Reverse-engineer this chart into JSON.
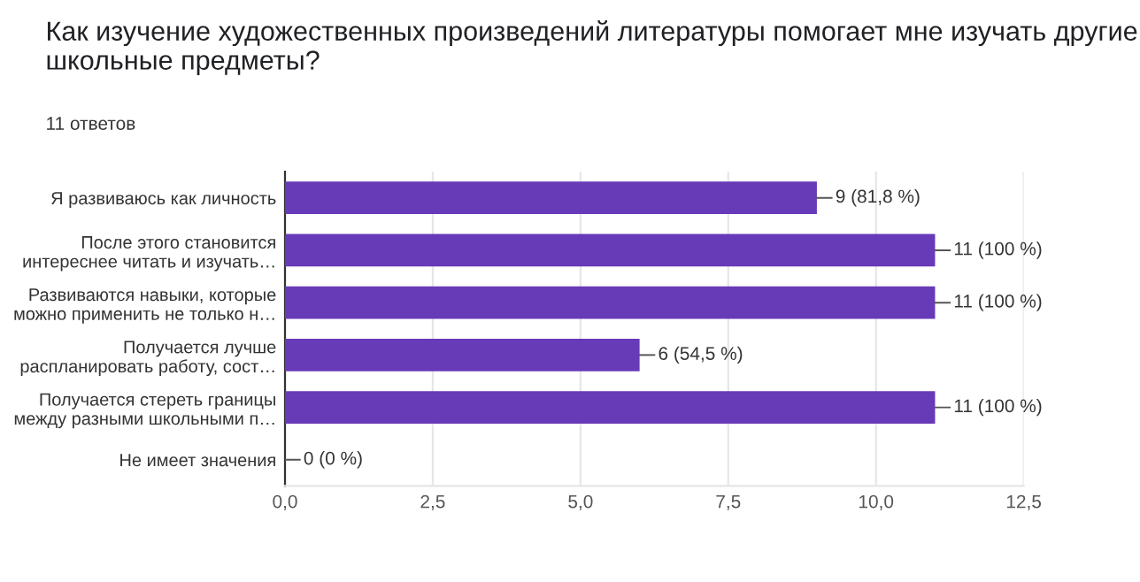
{
  "chart_data": {
    "type": "bar",
    "orientation": "horizontal",
    "title": "Как изучение художественных произведений литературы помогает мне изучать другие школьные предметы?",
    "subtitle": "11 ответов",
    "categories": [
      "Я развиваюсь как личность",
      "После этого становится\nинтереснее читать и изучать…",
      "Развиваются навыки, которые\nможно применить не только н…",
      "Получается лучше\nраспланировать работу, сост…",
      "Получается стереть границы\nмежду разными школьными п…",
      "Не имеет значения"
    ],
    "values": [
      9,
      11,
      11,
      6,
      11,
      0
    ],
    "value_labels": [
      "9 (81,8 %)",
      "11 (100 %)",
      "11 (100 %)",
      "6 (54,5 %)",
      "11 (100 %)",
      "0 (0 %)"
    ],
    "color": "#673ab7",
    "xlim": [
      0,
      12.5
    ],
    "xticks": [
      {
        "value": 0,
        "label": "0,0"
      },
      {
        "value": 2.5,
        "label": "2,5"
      },
      {
        "value": 5,
        "label": "5,0"
      },
      {
        "value": 7.5,
        "label": "7,5"
      },
      {
        "value": 10,
        "label": "10,0"
      },
      {
        "value": 12.5,
        "label": "12,5"
      }
    ],
    "grid": "x"
  }
}
